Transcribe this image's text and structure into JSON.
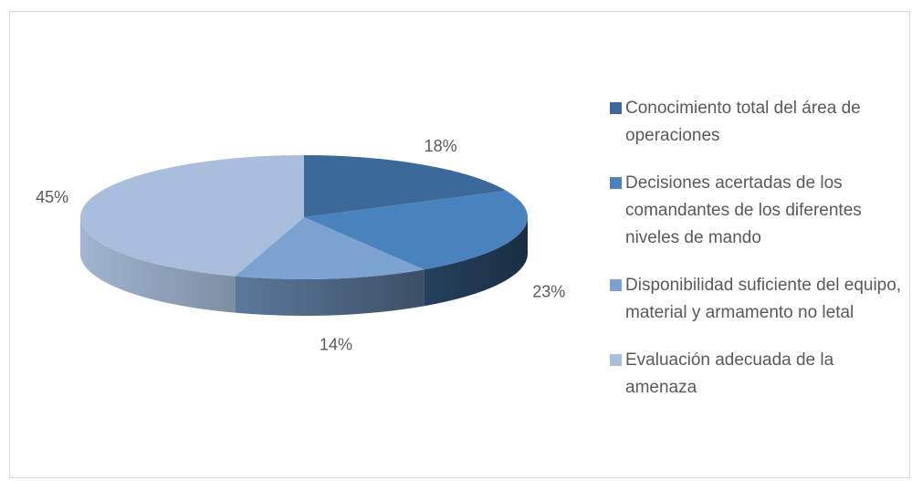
{
  "chart_data": {
    "type": "pie",
    "three_d": true,
    "categories": [
      "Conocimiento total del área de operaciones",
      "Decisiones acertadas de los comandantes de los diferentes niveles de mando",
      "Disponibilidad suficiente del equipo, material y armamento no letal",
      "Evaluación adecuada de la amenaza"
    ],
    "values": [
      18,
      23,
      14,
      45
    ],
    "value_labels": [
      "18%",
      "23%",
      "14%",
      "45%"
    ],
    "colors": [
      "#3b6a9a",
      "#4a82bd",
      "#7ba2d0",
      "#a9bedc"
    ],
    "legend": "right"
  }
}
